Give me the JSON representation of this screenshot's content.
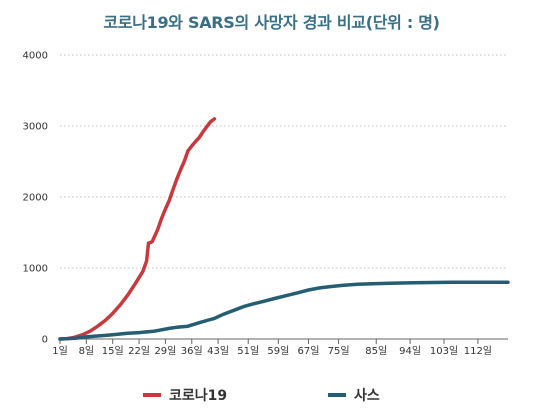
{
  "chart_data": {
    "type": "line",
    "title": "코로나19와 SARS의 사망자 경과 비교(단위 : 명)",
    "xlabel": "",
    "ylabel": "",
    "ylim": [
      0,
      4000
    ],
    "xlim": [
      1,
      120
    ],
    "yticks": [
      0,
      1000,
      2000,
      3000,
      4000
    ],
    "xticks": [
      {
        "x": 1,
        "label": "1일"
      },
      {
        "x": 8,
        "label": "8일"
      },
      {
        "x": 15,
        "label": "15일"
      },
      {
        "x": 22,
        "label": "22일"
      },
      {
        "x": 29,
        "label": "29일"
      },
      {
        "x": 36,
        "label": "36일"
      },
      {
        "x": 43,
        "label": "43일"
      },
      {
        "x": 51,
        "label": "51일"
      },
      {
        "x": 59,
        "label": "59일"
      },
      {
        "x": 67,
        "label": "67일"
      },
      {
        "x": 75,
        "label": "75일"
      },
      {
        "x": 85,
        "label": "85일"
      },
      {
        "x": 94,
        "label": "94일"
      },
      {
        "x": 103,
        "label": "103일"
      },
      {
        "x": 112,
        "label": "112일"
      }
    ],
    "grid": true,
    "legend": "bottom",
    "series": [
      {
        "name": "코로나19",
        "color": "#c8383c",
        "points": [
          [
            1,
            0
          ],
          [
            3,
            5
          ],
          [
            5,
            25
          ],
          [
            7,
            60
          ],
          [
            9,
            110
          ],
          [
            11,
            180
          ],
          [
            13,
            260
          ],
          [
            15,
            360
          ],
          [
            17,
            480
          ],
          [
            19,
            620
          ],
          [
            21,
            780
          ],
          [
            23,
            950
          ],
          [
            24,
            1100
          ],
          [
            24.5,
            1350
          ],
          [
            25.5,
            1370
          ],
          [
            27,
            1550
          ],
          [
            28,
            1700
          ],
          [
            29,
            1830
          ],
          [
            30,
            1950
          ],
          [
            31,
            2100
          ],
          [
            32,
            2250
          ],
          [
            33,
            2380
          ],
          [
            34,
            2500
          ],
          [
            35,
            2650
          ],
          [
            36,
            2720
          ],
          [
            37,
            2780
          ],
          [
            38,
            2840
          ],
          [
            39,
            2920
          ],
          [
            40,
            2990
          ],
          [
            41,
            3060
          ],
          [
            42,
            3100
          ]
        ]
      },
      {
        "name": "사스",
        "color": "#255d73",
        "points": [
          [
            1,
            0
          ],
          [
            5,
            10
          ],
          [
            8,
            30
          ],
          [
            10,
            40
          ],
          [
            13,
            50
          ],
          [
            15,
            60
          ],
          [
            17,
            70
          ],
          [
            19,
            80
          ],
          [
            22,
            90
          ],
          [
            24,
            100
          ],
          [
            26,
            110
          ],
          [
            28,
            130
          ],
          [
            30,
            150
          ],
          [
            32,
            165
          ],
          [
            35,
            180
          ],
          [
            38,
            230
          ],
          [
            40,
            260
          ],
          [
            42,
            290
          ],
          [
            44,
            340
          ],
          [
            46,
            380
          ],
          [
            48,
            420
          ],
          [
            50,
            460
          ],
          [
            52,
            490
          ],
          [
            55,
            530
          ],
          [
            58,
            570
          ],
          [
            61,
            610
          ],
          [
            64,
            650
          ],
          [
            67,
            690
          ],
          [
            70,
            720
          ],
          [
            73,
            740
          ],
          [
            76,
            755
          ],
          [
            80,
            770
          ],
          [
            85,
            780
          ],
          [
            90,
            788
          ],
          [
            95,
            792
          ],
          [
            100,
            796
          ],
          [
            105,
            798
          ],
          [
            110,
            800
          ],
          [
            115,
            800
          ],
          [
            120,
            800
          ]
        ]
      }
    ]
  }
}
